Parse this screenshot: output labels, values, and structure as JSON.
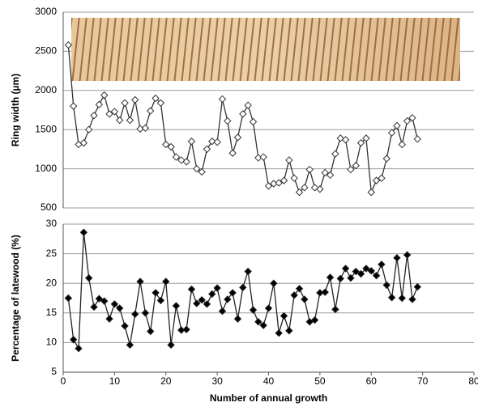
{
  "chart_data": [
    {
      "type": "line",
      "ylabel": "Ring width (µm)",
      "xlim": [
        0,
        80
      ],
      "ylim": [
        500,
        3000
      ],
      "yticks": [
        500,
        1000,
        1500,
        2000,
        2500,
        3000
      ],
      "grid": true,
      "x": [
        1,
        2,
        3,
        4,
        5,
        6,
        7,
        8,
        9,
        10,
        11,
        12,
        13,
        14,
        15,
        16,
        17,
        18,
        19,
        20,
        21,
        22,
        23,
        24,
        25,
        26,
        27,
        28,
        29,
        30,
        31,
        32,
        33,
        34,
        35,
        36,
        37,
        38,
        39,
        40,
        41,
        42,
        43,
        44,
        45,
        46,
        47,
        48,
        49,
        50,
        51,
        52,
        53,
        54,
        55,
        56,
        57,
        58,
        59,
        60,
        61,
        62,
        63,
        64,
        65,
        66,
        67,
        68,
        69
      ],
      "series": [
        {
          "color": "#333333",
          "marker_fill": "#ffffff",
          "values": [
            2580,
            1800,
            1310,
            1330,
            1500,
            1680,
            1820,
            1940,
            1700,
            1730,
            1620,
            1840,
            1620,
            1880,
            1510,
            1520,
            1740,
            1900,
            1840,
            1310,
            1280,
            1150,
            1110,
            1090,
            1350,
            1000,
            960,
            1250,
            1350,
            1340,
            1890,
            1610,
            1200,
            1400,
            1700,
            1810,
            1600,
            1140,
            1150,
            780,
            810,
            820,
            850,
            1110,
            880,
            700,
            760,
            990,
            760,
            740,
            950,
            920,
            1190,
            1390,
            1370,
            990,
            1040,
            1330,
            1390,
            700,
            850,
            880,
            1130,
            1460,
            1550,
            1310,
            1610,
            1650,
            1380
          ]
        }
      ]
    },
    {
      "type": "line",
      "xlabel": "Number of annual growth",
      "ylabel": "Percentage of latewood (%)",
      "xlim": [
        0,
        80
      ],
      "xticks": [
        0,
        10,
        20,
        30,
        40,
        50,
        60,
        70,
        80
      ],
      "ylim": [
        5,
        30
      ],
      "yticks": [
        5,
        10,
        15,
        20,
        25,
        30
      ],
      "grid": true,
      "x": [
        1,
        2,
        3,
        4,
        5,
        6,
        7,
        8,
        9,
        10,
        11,
        12,
        13,
        14,
        15,
        16,
        17,
        18,
        19,
        20,
        21,
        22,
        23,
        24,
        25,
        26,
        27,
        28,
        29,
        30,
        31,
        32,
        33,
        34,
        35,
        36,
        37,
        38,
        39,
        40,
        41,
        42,
        43,
        44,
        45,
        46,
        47,
        48,
        49,
        50,
        51,
        52,
        53,
        54,
        55,
        56,
        57,
        58,
        59,
        60,
        61,
        62,
        63,
        64,
        65,
        66,
        67,
        68,
        69
      ],
      "series": [
        {
          "color": "#222222",
          "marker_fill": "#000000",
          "values": [
            17.5,
            10.5,
            9,
            28.6,
            20.9,
            16,
            17.4,
            17,
            14,
            16.5,
            15.8,
            12.8,
            9.6,
            14.8,
            20.3,
            15,
            11.9,
            18.4,
            17.1,
            20.3,
            9.6,
            16.2,
            12.1,
            12.2,
            19,
            16.6,
            17.2,
            16.5,
            18.2,
            19.2,
            15.3,
            17.3,
            18.4,
            14,
            19.3,
            22,
            15.5,
            13.5,
            12.9,
            15.8,
            20,
            11.6,
            14.5,
            12,
            18,
            19.1,
            17.3,
            13.5,
            13.8,
            18.4,
            18.5,
            21,
            15.6,
            20.8,
            22.5,
            20.9,
            22,
            21.6,
            22.5,
            22.1,
            21.3,
            23.2,
            19.7,
            17.6,
            24.3,
            17.5,
            24.8,
            17.3,
            19.4
          ]
        }
      ]
    }
  ]
}
